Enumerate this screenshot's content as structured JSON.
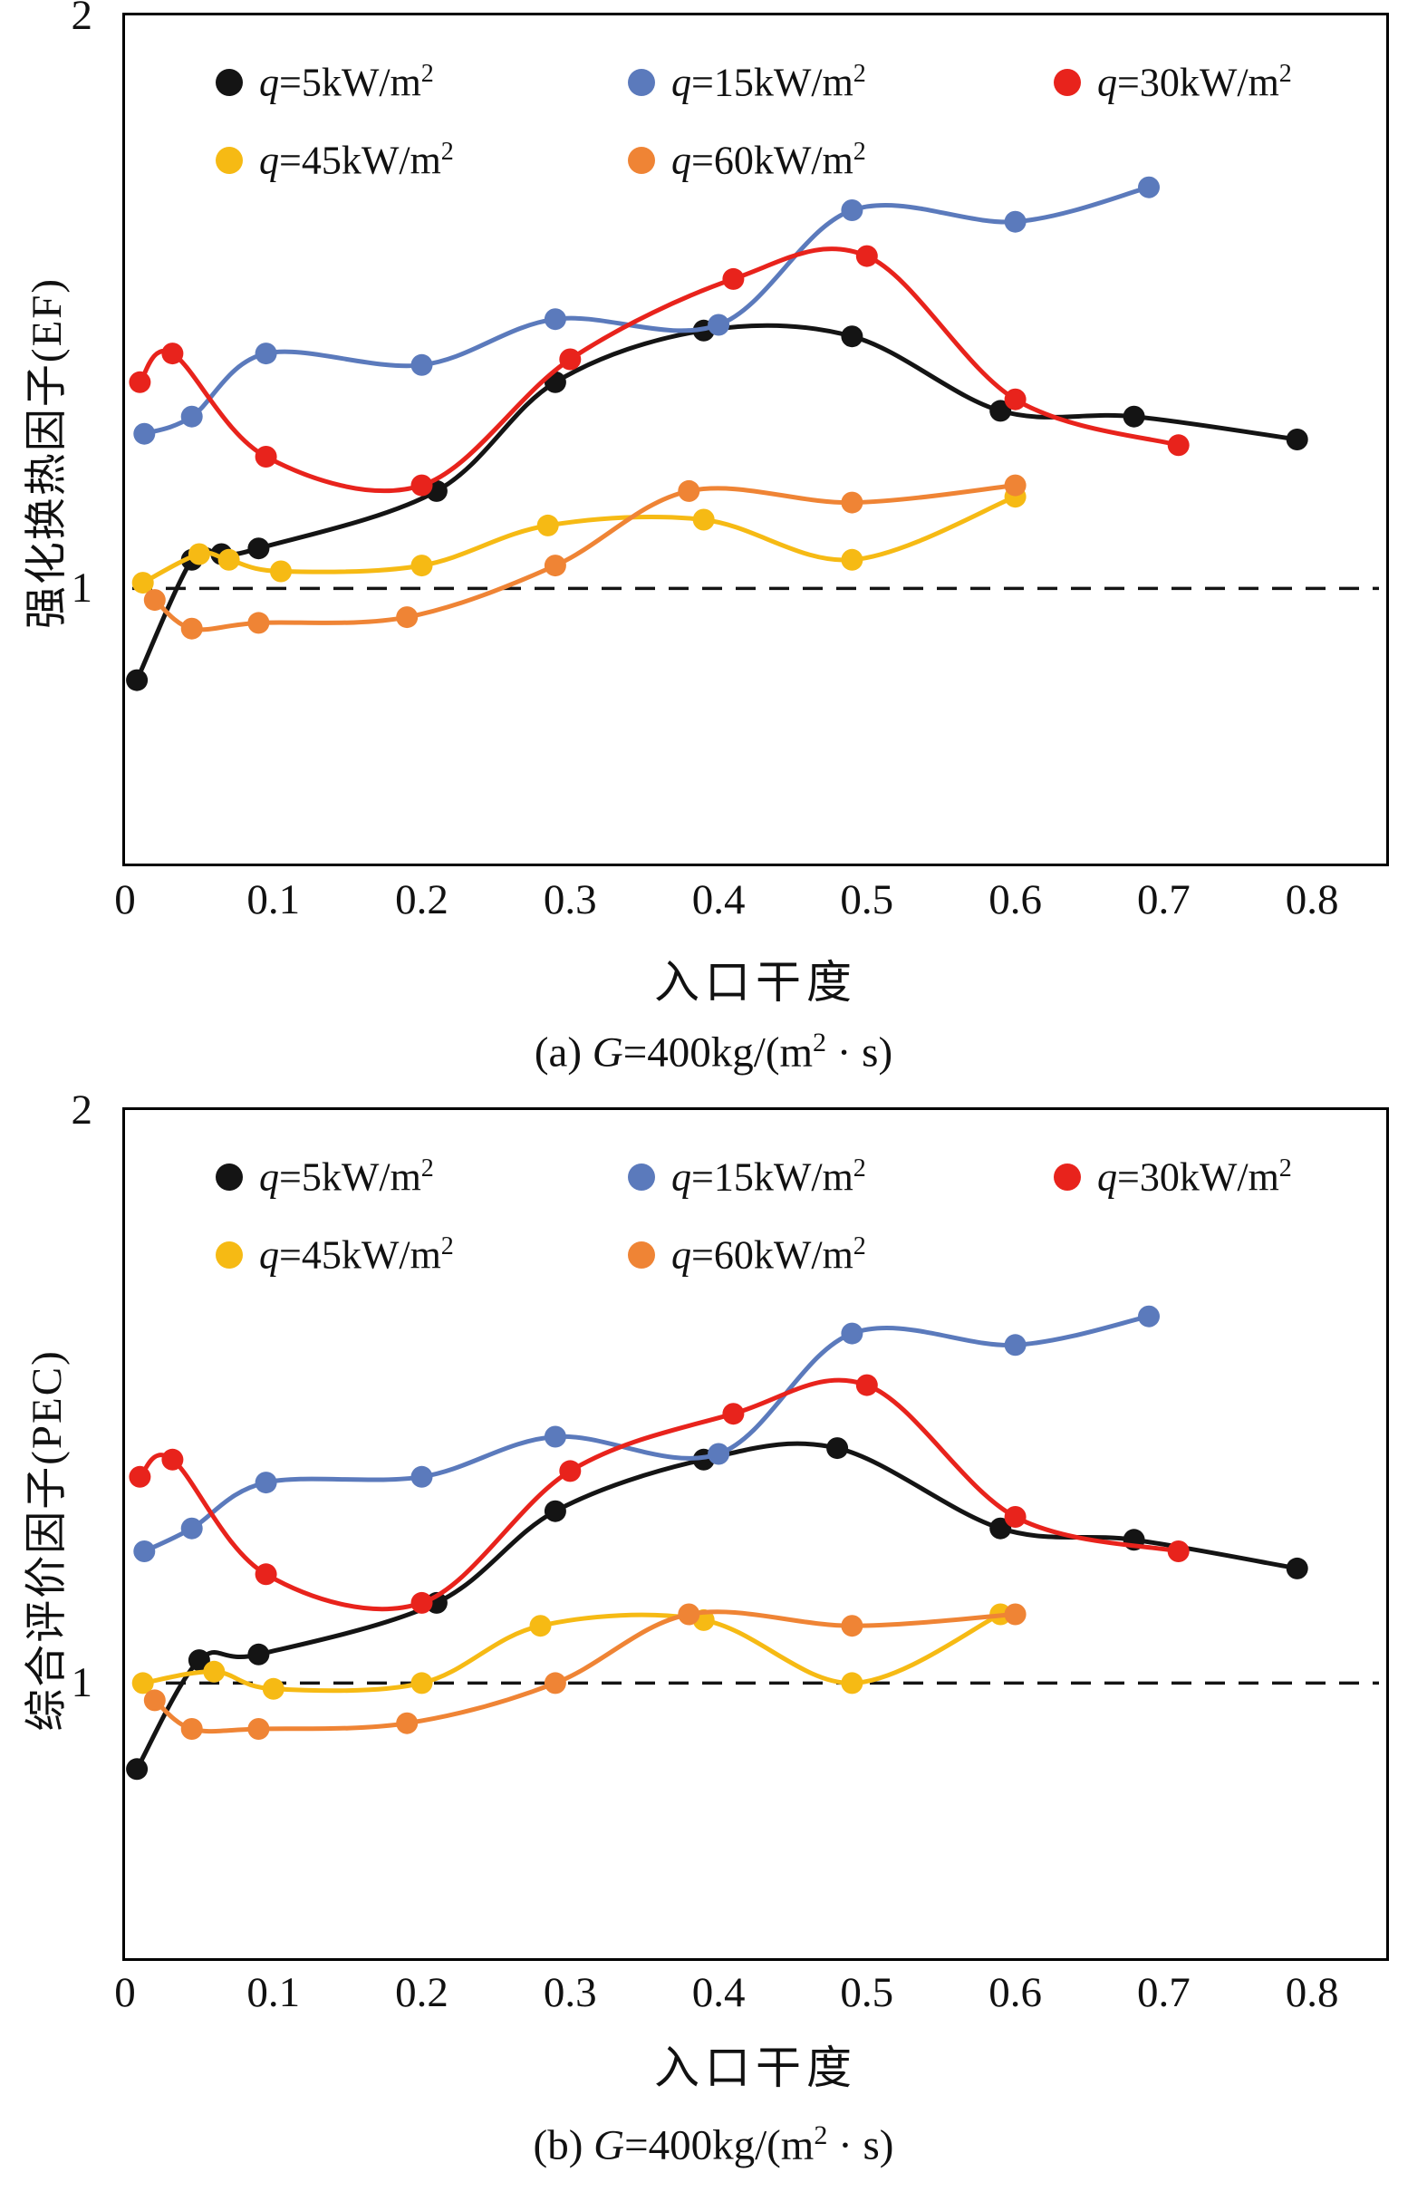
{
  "colors": {
    "q5": "#141414",
    "q15": "#5b7abc",
    "q30": "#e8231c",
    "q45": "#f6ba14",
    "q60": "#ef8435",
    "axis": "#000000",
    "background": "#ffffff"
  },
  "chart_data": [
    {
      "type": "line",
      "title": "(a) G=400kg/(m² · s)",
      "xlabel": "入口干度",
      "ylabel": "强化换热因子(EF)",
      "xlim": [
        0,
        0.85
      ],
      "ylim": [
        0.52,
        2.0
      ],
      "grid": false,
      "legend_position": "top-left-inside",
      "ref_line_y": 1,
      "caption": {
        "prefix": "(a) ",
        "sym": "G",
        "rest": "=400kg/(m",
        "sup": "2",
        "tail": " · s)"
      },
      "x_ticks": [
        {
          "value": 0,
          "label": "0"
        },
        {
          "value": 0.1,
          "label": "0.1"
        },
        {
          "value": 0.2,
          "label": "0.2"
        },
        {
          "value": 0.3,
          "label": "0.3"
        },
        {
          "value": 0.4,
          "label": "0.4"
        },
        {
          "value": 0.5,
          "label": "0.5"
        },
        {
          "value": 0.6,
          "label": "0.6"
        },
        {
          "value": 0.7,
          "label": "0.7"
        },
        {
          "value": 0.8,
          "label": "0.8"
        }
      ],
      "y_ticks": [
        {
          "value": 2,
          "label": "2"
        },
        {
          "value": 1,
          "label": "1"
        }
      ],
      "series": [
        {
          "id": "q5",
          "name": "q=5kW/m²",
          "color": "#141414",
          "label": {
            "sym": "q",
            "body": "=5kW/m",
            "sup": "2"
          },
          "x": [
            0.008,
            0.045,
            0.065,
            0.09,
            0.21,
            0.29,
            0.39,
            0.49,
            0.59,
            0.68,
            0.79
          ],
          "y": [
            0.84,
            1.05,
            1.06,
            1.07,
            1.17,
            1.36,
            1.45,
            1.44,
            1.31,
            1.3,
            1.26
          ]
        },
        {
          "id": "q15",
          "name": "q=15kW/m²",
          "color": "#5b7abc",
          "label": {
            "sym": "q",
            "body": "=15kW/m",
            "sup": "2"
          },
          "x": [
            0.013,
            0.045,
            0.095,
            0.2,
            0.29,
            0.4,
            0.49,
            0.6,
            0.69
          ],
          "y": [
            1.27,
            1.3,
            1.41,
            1.39,
            1.47,
            1.46,
            1.66,
            1.64,
            1.7
          ]
        },
        {
          "id": "q30",
          "name": "q=30kW/m²",
          "color": "#e8231c",
          "label": {
            "sym": "q",
            "body": "=30kW/m",
            "sup": "2"
          },
          "x": [
            0.01,
            0.032,
            0.095,
            0.2,
            0.3,
            0.41,
            0.5,
            0.6,
            0.71
          ],
          "y": [
            1.36,
            1.41,
            1.23,
            1.18,
            1.4,
            1.54,
            1.58,
            1.33,
            1.25
          ]
        },
        {
          "id": "q45",
          "name": "q=45kW/m²",
          "color": "#f6ba14",
          "label": {
            "sym": "q",
            "body": "=45kW/m",
            "sup": "2"
          },
          "x": [
            0.012,
            0.05,
            0.07,
            0.105,
            0.2,
            0.285,
            0.39,
            0.49,
            0.6
          ],
          "y": [
            1.01,
            1.06,
            1.05,
            1.03,
            1.04,
            1.11,
            1.12,
            1.05,
            1.16
          ]
        },
        {
          "id": "q60",
          "name": "q=60kW/m²",
          "color": "#ef8435",
          "label": {
            "sym": "q",
            "body": "=60kW/m",
            "sup": "2"
          },
          "x": [
            0.02,
            0.045,
            0.09,
            0.19,
            0.29,
            0.38,
            0.49,
            0.6
          ],
          "y": [
            0.98,
            0.93,
            0.94,
            0.95,
            1.04,
            1.17,
            1.15,
            1.18
          ]
        }
      ]
    },
    {
      "type": "line",
      "title": "(b) G=400kg/(m² · s)",
      "xlabel": "入口干度",
      "ylabel": "综合评价因子(PEC)",
      "xlim": [
        0,
        0.85
      ],
      "ylim": [
        0.52,
        2.0
      ],
      "grid": false,
      "legend_position": "top-left-inside",
      "ref_line_y": 1,
      "caption": {
        "prefix": "(b) ",
        "sym": "G",
        "rest": "=400kg/(m",
        "sup": "2",
        "tail": " · s)"
      },
      "x_ticks": [
        {
          "value": 0,
          "label": "0"
        },
        {
          "value": 0.1,
          "label": "0.1"
        },
        {
          "value": 0.2,
          "label": "0.2"
        },
        {
          "value": 0.3,
          "label": "0.3"
        },
        {
          "value": 0.4,
          "label": "0.4"
        },
        {
          "value": 0.5,
          "label": "0.5"
        },
        {
          "value": 0.6,
          "label": "0.6"
        },
        {
          "value": 0.7,
          "label": "0.7"
        },
        {
          "value": 0.8,
          "label": "0.8"
        }
      ],
      "y_ticks": [
        {
          "value": 2,
          "label": "2"
        },
        {
          "value": 1,
          "label": "1"
        }
      ],
      "series": [
        {
          "id": "q5",
          "name": "q=5kW/m²",
          "color": "#141414",
          "label": {
            "sym": "q",
            "body": "=5kW/m",
            "sup": "2"
          },
          "x": [
            0.008,
            0.05,
            0.09,
            0.21,
            0.29,
            0.39,
            0.48,
            0.59,
            0.68,
            0.79
          ],
          "y": [
            0.85,
            1.04,
            1.05,
            1.14,
            1.3,
            1.39,
            1.41,
            1.27,
            1.25,
            1.2
          ]
        },
        {
          "id": "q15",
          "name": "q=15kW/m²",
          "color": "#5b7abc",
          "label": {
            "sym": "q",
            "body": "=15kW/m",
            "sup": "2"
          },
          "x": [
            0.013,
            0.045,
            0.095,
            0.2,
            0.29,
            0.4,
            0.49,
            0.6,
            0.69
          ],
          "y": [
            1.23,
            1.27,
            1.35,
            1.36,
            1.43,
            1.4,
            1.61,
            1.59,
            1.64
          ]
        },
        {
          "id": "q30",
          "name": "q=30kW/m²",
          "color": "#e8231c",
          "label": {
            "sym": "q",
            "body": "=30kW/m",
            "sup": "2"
          },
          "x": [
            0.01,
            0.032,
            0.095,
            0.2,
            0.3,
            0.41,
            0.5,
            0.6,
            0.71
          ],
          "y": [
            1.36,
            1.39,
            1.19,
            1.14,
            1.37,
            1.47,
            1.52,
            1.29,
            1.23
          ]
        },
        {
          "id": "q45",
          "name": "q=45kW/m²",
          "color": "#f6ba14",
          "label": {
            "sym": "q",
            "body": "=45kW/m",
            "sup": "2"
          },
          "x": [
            0.012,
            0.06,
            0.1,
            0.2,
            0.28,
            0.39,
            0.49,
            0.59
          ],
          "y": [
            1.0,
            1.02,
            0.99,
            1.0,
            1.1,
            1.11,
            1.0,
            1.12
          ]
        },
        {
          "id": "q60",
          "name": "q=60kW/m²",
          "color": "#ef8435",
          "label": {
            "sym": "q",
            "body": "=60kW/m",
            "sup": "2"
          },
          "x": [
            0.02,
            0.045,
            0.09,
            0.19,
            0.29,
            0.38,
            0.49,
            0.6
          ],
          "y": [
            0.97,
            0.92,
            0.92,
            0.93,
            1.0,
            1.12,
            1.1,
            1.12
          ]
        }
      ]
    }
  ]
}
